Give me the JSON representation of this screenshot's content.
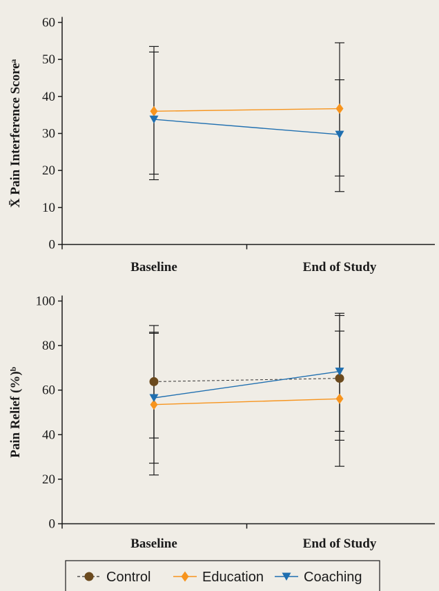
{
  "chart_data": [
    {
      "type": "line",
      "ylabel": "X̄ Pain Interference Scoreᵃ",
      "categories": [
        "Baseline",
        "End of Study"
      ],
      "ylim": [
        0,
        60
      ],
      "yticks": [
        0,
        10,
        20,
        30,
        40,
        50,
        60
      ],
      "series": [
        {
          "name": "Education",
          "values": [
            36,
            36.7
          ],
          "error_bars": [
            [
              17.5,
              53.5
            ],
            [
              18.5,
              54.5
            ]
          ]
        },
        {
          "name": "Coaching",
          "values": [
            33.8,
            29.7
          ],
          "error_bars": [
            [
              19,
              52
            ],
            [
              14.3,
              44.5
            ]
          ]
        }
      ]
    },
    {
      "type": "line",
      "ylabel": "Pain Relief (%)ᵇ",
      "categories": [
        "Baseline",
        "End of Study"
      ],
      "ylim": [
        0,
        100
      ],
      "yticks": [
        0,
        20,
        40,
        60,
        80,
        100
      ],
      "series": [
        {
          "name": "Control",
          "values": [
            63.8,
            65.3
          ],
          "error_bars": [
            [
              38.5,
              89
            ],
            [
              37.5,
              93.5
            ]
          ]
        },
        {
          "name": "Education",
          "values": [
            53.5,
            56.1
          ],
          "error_bars": [
            [
              21.9,
              85.5
            ],
            [
              25.8,
              86.5
            ]
          ]
        },
        {
          "name": "Coaching",
          "values": [
            56.5,
            68.4
          ],
          "error_bars": [
            [
              27.2,
              86
            ],
            [
              41.5,
              94.5
            ]
          ]
        }
      ]
    }
  ],
  "legend": {
    "items": [
      {
        "name": "Control",
        "marker": "circle",
        "color": "#6b4a1e",
        "dashed": true
      },
      {
        "name": "Education",
        "marker": "diamond",
        "color": "#f7941d",
        "dashed": false
      },
      {
        "name": "Coaching",
        "marker": "triangle-down",
        "color": "#1f6fb0",
        "dashed": false
      }
    ]
  },
  "colors": {
    "Control": "#6b4a1e",
    "Education": "#f7941d",
    "Coaching": "#1f6fb0",
    "axis": "#1a1a1a",
    "background": "#f0ede6"
  }
}
